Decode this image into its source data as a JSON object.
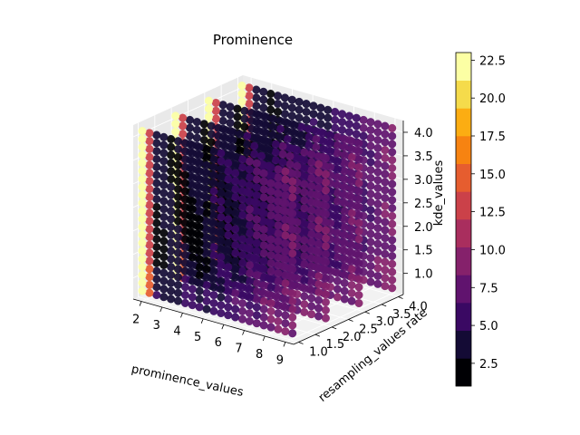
{
  "chart_data": {
    "type": "scatter",
    "subtype": "3d-scatter",
    "title": "Prominence",
    "xlabel": "prominence_values",
    "ylabel": "resampling_values rate",
    "zlabel": "kde_values",
    "x_ticks": [
      "2",
      "3",
      "4",
      "5",
      "6",
      "7",
      "8",
      "9"
    ],
    "y_ticks": [
      "1.0",
      "1.5",
      "2.0",
      "2.5",
      "3.0",
      "3.5",
      "4.0"
    ],
    "z_ticks": [
      "1.0",
      "1.5",
      "2.0",
      "2.5",
      "3.0",
      "3.5",
      "4.0"
    ],
    "xlim": [
      1.6,
      9.4
    ],
    "ylim": [
      0.85,
      4.15
    ],
    "zlim": [
      0.55,
      4.25
    ],
    "x_range": [
      1.8,
      9.1
    ],
    "z_range": [
      0.7,
      4.1
    ],
    "slices_y": [
      1.0,
      2.0,
      3.0,
      4.0
    ],
    "grid": true,
    "colormap": "inferno",
    "colorbar": {
      "ticks": [
        "2.5",
        "5.0",
        "7.5",
        "10.0",
        "12.5",
        "15.0",
        "17.5",
        "20.0",
        "22.5"
      ],
      "range": [
        1.0,
        23.0
      ],
      "levels": 12,
      "colors": [
        "#000004",
        "#140b35",
        "#3a0963",
        "#60136e",
        "#85216b",
        "#a92e5e",
        "#cb4149",
        "#e65d2f",
        "#f78311",
        "#fcad12",
        "#f5db4b",
        "#fcffa4"
      ]
    }
  }
}
